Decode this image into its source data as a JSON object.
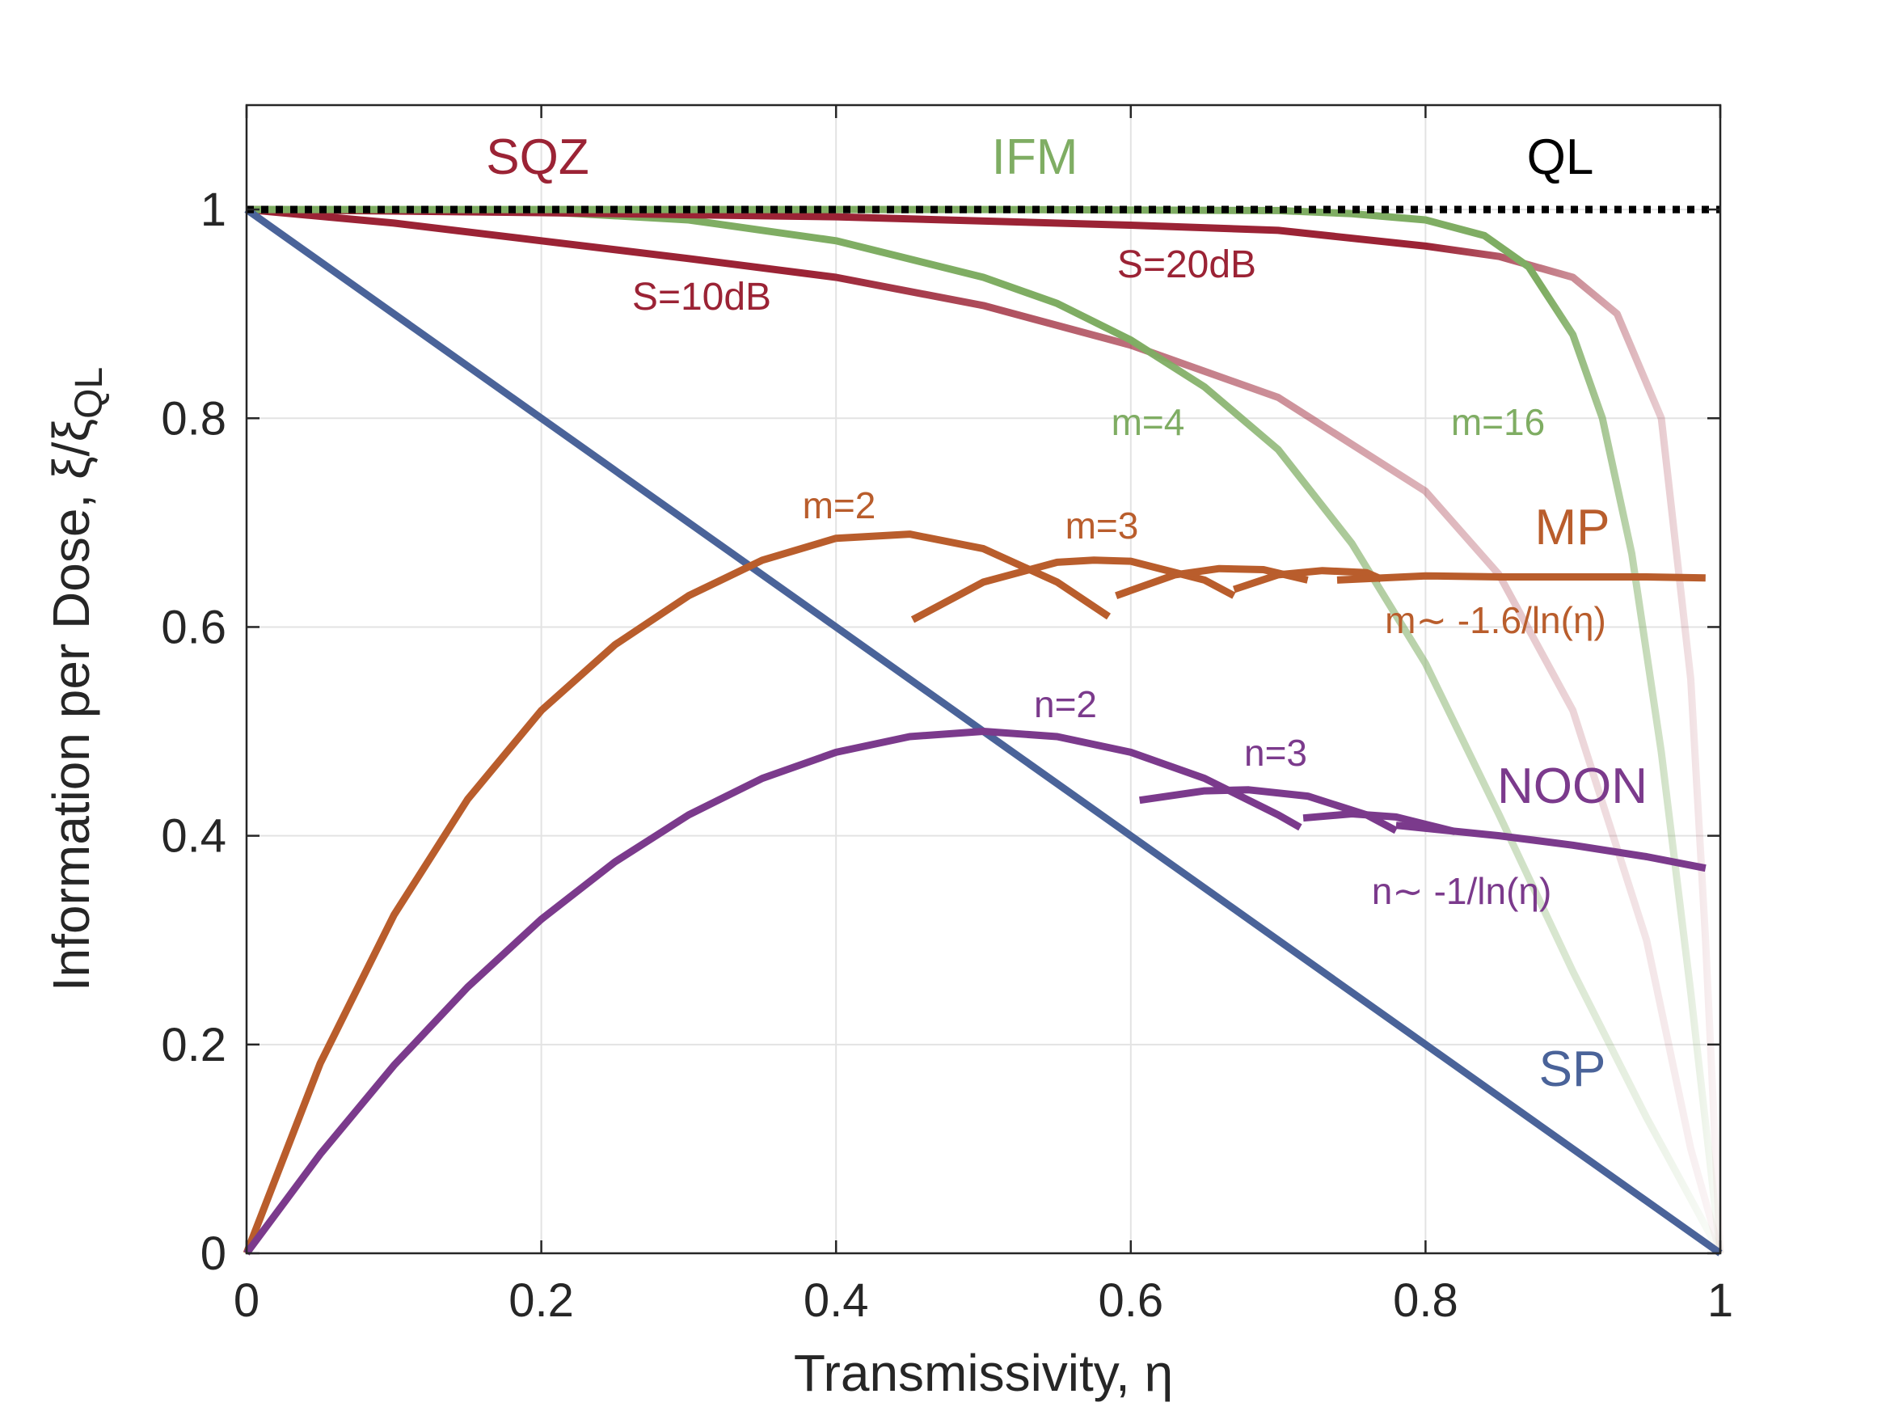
{
  "chart_data": {
    "type": "line",
    "xlabel": "Transmissivity, η",
    "ylabel": "Information per Dose, ξ/ξ_QL",
    "ylabel_parts": {
      "main": "Information per Dose, ξ/ξ",
      "sub": "QL"
    },
    "xlim": [
      0,
      1
    ],
    "ylim": [
      0,
      1.1
    ],
    "xticks": [
      0,
      0.2,
      0.4,
      0.6,
      0.8,
      1
    ],
    "xtick_labels": [
      "0",
      "0.2",
      "0.4",
      "0.6",
      "0.8",
      "1"
    ],
    "yticks": [
      0,
      0.2,
      0.4,
      0.6,
      0.8,
      1
    ],
    "ytick_labels": [
      "0",
      "0.2",
      "0.4",
      "0.6",
      "0.8",
      "1"
    ],
    "grid": true,
    "colors": {
      "ql": "#000000",
      "sp": "#4a6399",
      "mp": "#b95d2c",
      "noon": "#7b3a8c",
      "sqz": "#9b2335",
      "ifm": "#7fad63",
      "grid": "#e3e3e3",
      "axis": "#262626"
    },
    "series": [
      {
        "name": "QL",
        "x": [
          0,
          1
        ],
        "y": [
          1,
          1
        ],
        "style": "dotted"
      },
      {
        "name": "SP",
        "x": [
          0,
          1
        ],
        "y": [
          1,
          0
        ]
      },
      {
        "name": "MP m=2",
        "x": [
          0,
          0.05,
          0.1,
          0.15,
          0.2,
          0.25,
          0.3,
          0.35,
          0.4,
          0.45,
          0.5,
          0.55,
          0.585
        ],
        "y": [
          0,
          0.182,
          0.324,
          0.435,
          0.52,
          0.583,
          0.63,
          0.664,
          0.685,
          0.689,
          0.675,
          0.643,
          0.61
        ]
      },
      {
        "name": "MP m=3",
        "x": [
          0.452,
          0.5,
          0.55,
          0.575,
          0.6,
          0.65,
          0.67
        ],
        "y": [
          0.607,
          0.643,
          0.662,
          0.664,
          0.663,
          0.645,
          0.63
        ]
      },
      {
        "name": "MP m=4",
        "x": [
          0.59,
          0.63,
          0.66,
          0.69,
          0.72
        ],
        "y": [
          0.63,
          0.65,
          0.656,
          0.655,
          0.645
        ]
      },
      {
        "name": "MP m=5",
        "x": [
          0.67,
          0.7,
          0.73,
          0.76,
          0.77
        ],
        "y": [
          0.636,
          0.65,
          0.654,
          0.652,
          0.646
        ]
      },
      {
        "name": "MP asymptote",
        "x": [
          0.74,
          0.8,
          0.85,
          0.9,
          0.95,
          0.99
        ],
        "y": [
          0.645,
          0.649,
          0.648,
          0.648,
          0.648,
          0.647
        ]
      },
      {
        "name": "NOON n=2",
        "x": [
          0,
          0.05,
          0.1,
          0.15,
          0.2,
          0.25,
          0.3,
          0.35,
          0.4,
          0.45,
          0.5,
          0.55,
          0.6,
          0.65,
          0.7,
          0.715
        ],
        "y": [
          0,
          0.095,
          0.18,
          0.255,
          0.32,
          0.375,
          0.42,
          0.455,
          0.48,
          0.495,
          0.5,
          0.495,
          0.48,
          0.455,
          0.42,
          0.408
        ]
      },
      {
        "name": "NOON n=3",
        "x": [
          0.606,
          0.65,
          0.68,
          0.72,
          0.76,
          0.78
        ],
        "y": [
          0.434,
          0.443,
          0.444,
          0.438,
          0.42,
          0.405
        ]
      },
      {
        "name": "NOON n=4",
        "x": [
          0.717,
          0.75,
          0.78,
          0.82
        ],
        "y": [
          0.417,
          0.421,
          0.418,
          0.404
        ]
      },
      {
        "name": "NOON asymptote",
        "x": [
          0.78,
          0.85,
          0.9,
          0.95,
          0.99
        ],
        "y": [
          0.41,
          0.4,
          0.391,
          0.38,
          0.369
        ]
      },
      {
        "name": "SQZ S=10dB",
        "x": [
          0,
          0.1,
          0.2,
          0.3,
          0.4,
          0.5,
          0.6,
          0.7,
          0.8,
          0.85,
          0.9,
          0.95,
          0.98,
          1
        ],
        "y": [
          1,
          0.987,
          0.97,
          0.953,
          0.935,
          0.908,
          0.87,
          0.82,
          0.73,
          0.65,
          0.52,
          0.3,
          0.1,
          0
        ],
        "fade_after": 0.38
      },
      {
        "name": "SQZ S=20dB",
        "x": [
          0,
          0.2,
          0.4,
          0.6,
          0.7,
          0.8,
          0.85,
          0.9,
          0.93,
          0.96,
          0.98,
          0.99,
          1
        ],
        "y": [
          1,
          0.997,
          0.993,
          0.985,
          0.98,
          0.965,
          0.955,
          0.935,
          0.9,
          0.8,
          0.55,
          0.3,
          0
        ],
        "fade_after": 0.8
      },
      {
        "name": "IFM m=4",
        "x": [
          0,
          0.2,
          0.3,
          0.4,
          0.5,
          0.55,
          0.6,
          0.65,
          0.7,
          0.75,
          0.8,
          0.85,
          0.9,
          0.95,
          1
        ],
        "y": [
          1,
          0.998,
          0.99,
          0.97,
          0.935,
          0.91,
          0.875,
          0.83,
          0.77,
          0.68,
          0.565,
          0.42,
          0.27,
          0.13,
          0
        ],
        "fade_after": 0.6
      },
      {
        "name": "IFM m=16",
        "x": [
          0,
          0.5,
          0.7,
          0.75,
          0.8,
          0.84,
          0.87,
          0.9,
          0.92,
          0.94,
          0.96,
          0.98,
          1
        ],
        "y": [
          1,
          1,
          0.999,
          0.996,
          0.99,
          0.975,
          0.945,
          0.88,
          0.8,
          0.67,
          0.48,
          0.25,
          0
        ],
        "fade_after": 0.88
      }
    ],
    "annotations": {
      "sqz": "SQZ",
      "ifm": "IFM",
      "ql": "QL",
      "s10": "S=10dB",
      "s20": "S=20dB",
      "ifm_m4": "m=4",
      "ifm_m16": "m=16",
      "mp": "MP",
      "mp_m2": "m=2",
      "mp_m3": "m=3",
      "mp_asym": "m∼ -1.6/ln(η)",
      "noon": "NOON",
      "noon_n2": "n=2",
      "noon_n3": "n=3",
      "noon_asym": "n∼ -1/ln(η)",
      "sp": "SP"
    }
  }
}
